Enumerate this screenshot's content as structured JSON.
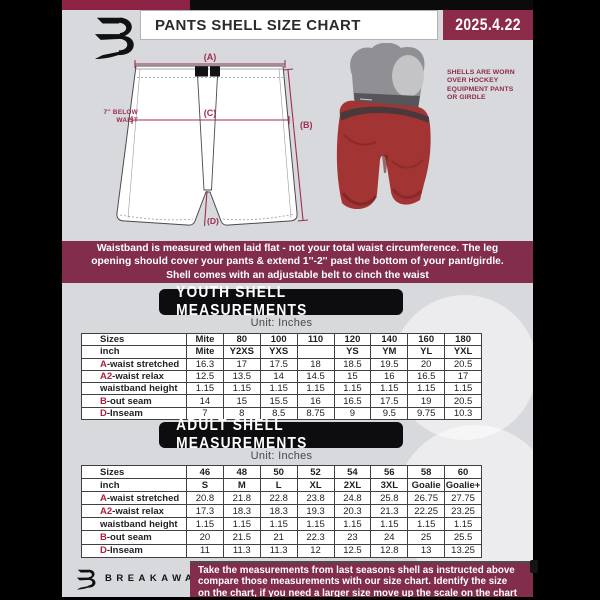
{
  "colors": {
    "maroon_band": "#822d4c",
    "maroon_box": "#8c2b49",
    "maroon_topbar": "#8c2344",
    "diagram_accent": "#9c2c52",
    "table_letter_red": "#ae1f3d",
    "background_gray": "#d8d9dc",
    "black": "#0d0d0f",
    "shell_red": "#a23434"
  },
  "header": {
    "logo": "breakaway-b-monogram",
    "title": "PANTS SHELL SIZE CHART",
    "date": "2025.4.22"
  },
  "diagram": {
    "label_a": "(A)",
    "label_b": "(B)",
    "label_c": "(C)",
    "label_d": "(D)",
    "waist_note_lines": [
      "7'' BELOW",
      "WAIST"
    ],
    "shell_note_lines": [
      "SHELLS ARE WORN",
      "OVER HOCKEY",
      "EQUIPMENT PANTS",
      "OR GIRDLE"
    ]
  },
  "notice_lines": [
    "Waistband is measured when laid flat - not your total waist circumference. The leg",
    "opening should cover your pants & extend 1''-2'' past the bottom of your pant/girdle.",
    "Shell comes with an adjustable belt to cinch the waist"
  ],
  "sections": {
    "youth": {
      "heading": "YOUTH SHELL MEASUREMENTS",
      "unit_label": "Unit: Inches",
      "table": {
        "rows": [
          {
            "header": true,
            "prefix": "",
            "label": "Sizes",
            "values": [
              "Mite",
              "80",
              "100",
              "110",
              "120",
              "140",
              "160",
              "180"
            ]
          },
          {
            "header": true,
            "prefix": "",
            "label": "inch",
            "values": [
              "Mite",
              "Y2XS",
              "YXS",
              "",
              "YS",
              "YM",
              "YL",
              "YXL"
            ]
          },
          {
            "header": false,
            "prefix": "A",
            "label": "-waist stretched",
            "values": [
              "16.3",
              "17",
              "17.5",
              "18",
              "18.5",
              "19.5",
              "20",
              "20.5"
            ]
          },
          {
            "header": false,
            "prefix": "A2",
            "label": "-waist relax",
            "values": [
              "12.5",
              "13.5",
              "14",
              "14.5",
              "15",
              "16",
              "16.5",
              "17"
            ]
          },
          {
            "header": false,
            "prefix": "",
            "label": "waistband height",
            "values": [
              "1.15",
              "1.15",
              "1.15",
              "1.15",
              "1.15",
              "1.15",
              "1.15",
              "1.15"
            ]
          },
          {
            "header": false,
            "prefix": "B",
            "label": "-out seam",
            "values": [
              "14",
              "15",
              "15.5",
              "16",
              "16.5",
              "17.5",
              "19",
              "20.5"
            ]
          },
          {
            "header": false,
            "prefix": "D",
            "label": "-Inseam",
            "values": [
              "7",
              "8",
              "8.5",
              "8.75",
              "9",
              "9.5",
              "9.75",
              "10.3"
            ]
          }
        ]
      }
    },
    "adult": {
      "heading": "ADULT SHELL MEASUREMENTS",
      "unit_label": "Unit: Inches",
      "table": {
        "rows": [
          {
            "header": true,
            "prefix": "",
            "label": "Sizes",
            "values": [
              "46",
              "48",
              "50",
              "52",
              "54",
              "56",
              "58",
              "60"
            ]
          },
          {
            "header": true,
            "prefix": "",
            "label": "inch",
            "values": [
              "S",
              "M",
              "L",
              "XL",
              "2XL",
              "3XL",
              "Goalie",
              "Goalie+"
            ]
          },
          {
            "header": false,
            "prefix": "A",
            "label": "-waist stretched",
            "values": [
              "20.8",
              "21.8",
              "22.8",
              "23.8",
              "24.8",
              "25.8",
              "26.75",
              "27.75"
            ]
          },
          {
            "header": false,
            "prefix": "A2",
            "label": "-waist relax",
            "values": [
              "17.3",
              "18.3",
              "18.3",
              "19.3",
              "20.3",
              "21.3",
              "22.25",
              "23.25"
            ]
          },
          {
            "header": false,
            "prefix": "",
            "label": "waistband height",
            "values": [
              "1.15",
              "1.15",
              "1.15",
              "1.15",
              "1.15",
              "1.15",
              "1.15",
              "1.15"
            ]
          },
          {
            "header": false,
            "prefix": "B",
            "label": "-out seam",
            "values": [
              "20",
              "21.5",
              "21",
              "22.3",
              "23",
              "24",
              "25",
              "25.5"
            ]
          },
          {
            "header": false,
            "prefix": "D",
            "label": "-Inseam",
            "values": [
              "11",
              "11.3",
              "11.3",
              "12",
              "12.5",
              "12.8",
              "13",
              "13.25"
            ]
          }
        ]
      }
    }
  },
  "footer": {
    "brand": "BREAKAWAY",
    "note_lines": [
      "Take the measurements from last seasons shell as instructed above",
      "compare those measurements  with our size chart. Identify the size",
      "on the chart, if you need a larger size move up the scale on the chart"
    ]
  }
}
